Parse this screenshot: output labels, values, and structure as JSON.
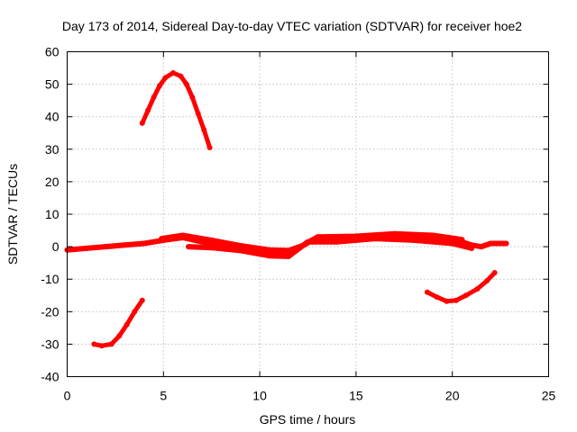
{
  "chart_data": {
    "type": "scatter",
    "title": "Day 173 of 2014, Sidereal Day-to-day VTEC variation (SDTVAR) for receiver hoe2",
    "xlabel": "GPS time / hours",
    "ylabel": "SDTVAR / TECUs",
    "xlim": [
      0,
      25
    ],
    "ylim": [
      -40,
      60
    ],
    "xticks": [
      0,
      5,
      10,
      15,
      20,
      25
    ],
    "yticks": [
      -40,
      -30,
      -20,
      -10,
      0,
      10,
      20,
      30,
      40,
      50,
      60
    ],
    "grid": true,
    "color": "#ff0000",
    "series": [
      {
        "name": "satellite-arc-high",
        "points": [
          [
            3.9,
            38
          ],
          [
            4.2,
            42
          ],
          [
            4.5,
            46
          ],
          [
            4.8,
            49.5
          ],
          [
            5.1,
            52
          ],
          [
            5.5,
            53.5
          ],
          [
            5.9,
            52.5
          ],
          [
            6.2,
            50
          ],
          [
            6.5,
            46
          ],
          [
            6.8,
            41
          ],
          [
            7.1,
            36
          ],
          [
            7.4,
            30.5
          ]
        ]
      },
      {
        "name": "satellite-arc-low-left",
        "points": [
          [
            1.4,
            -30
          ],
          [
            1.8,
            -30.5
          ],
          [
            2.3,
            -30
          ],
          [
            2.7,
            -27.5
          ],
          [
            3.1,
            -24
          ],
          [
            3.5,
            -20
          ],
          [
            3.9,
            -16.5
          ]
        ]
      },
      {
        "name": "satellite-arc-low-right",
        "points": [
          [
            18.7,
            -14
          ],
          [
            19.2,
            -15.5
          ],
          [
            19.7,
            -16.8
          ],
          [
            20.2,
            -16.5
          ],
          [
            20.7,
            -15
          ],
          [
            21.3,
            -13
          ],
          [
            21.8,
            -10.5
          ],
          [
            22.2,
            -8
          ]
        ]
      },
      {
        "name": "baseline-band",
        "points": [
          [
            0,
            -1
          ],
          [
            1,
            -0.5
          ],
          [
            2,
            0
          ],
          [
            3,
            0.5
          ],
          [
            4,
            1
          ],
          [
            5,
            2
          ],
          [
            6,
            2.8
          ],
          [
            7,
            1.5
          ],
          [
            8,
            0.5
          ],
          [
            9,
            -0.5
          ],
          [
            10,
            -1.5
          ],
          [
            11,
            -2
          ],
          [
            12,
            -0.5
          ],
          [
            12.7,
            2
          ],
          [
            13.5,
            2.3
          ],
          [
            14.5,
            2.2
          ],
          [
            15.5,
            2.8
          ],
          [
            16.5,
            3.2
          ],
          [
            17.5,
            3
          ],
          [
            18.5,
            2.5
          ],
          [
            19.5,
            1.8
          ],
          [
            20.5,
            1.5
          ],
          [
            21,
            0.5
          ],
          [
            21.5,
            0
          ],
          [
            22,
            1
          ],
          [
            22.8,
            1
          ]
        ]
      },
      {
        "name": "baseline-spread",
        "points": [
          [
            4.9,
            2.5
          ],
          [
            6,
            3.5
          ],
          [
            7.5,
            2
          ],
          [
            9,
            0.3
          ],
          [
            10.5,
            -1
          ],
          [
            11.5,
            -1.2
          ],
          [
            12.3,
            0.5
          ],
          [
            13,
            3
          ],
          [
            15,
            3.2
          ],
          [
            17,
            4
          ],
          [
            19,
            3.5
          ],
          [
            20.5,
            2.2
          ]
        ]
      },
      {
        "name": "baseline-spread-2",
        "points": [
          [
            6.3,
            0
          ],
          [
            7.5,
            -0.3
          ],
          [
            9,
            -1.2
          ],
          [
            10.5,
            -2.8
          ],
          [
            11.5,
            -3
          ],
          [
            12.5,
            1.5
          ],
          [
            14,
            1.5
          ],
          [
            16,
            2.5
          ],
          [
            18,
            2
          ],
          [
            20,
            1
          ],
          [
            21,
            -0.5
          ]
        ]
      }
    ]
  }
}
